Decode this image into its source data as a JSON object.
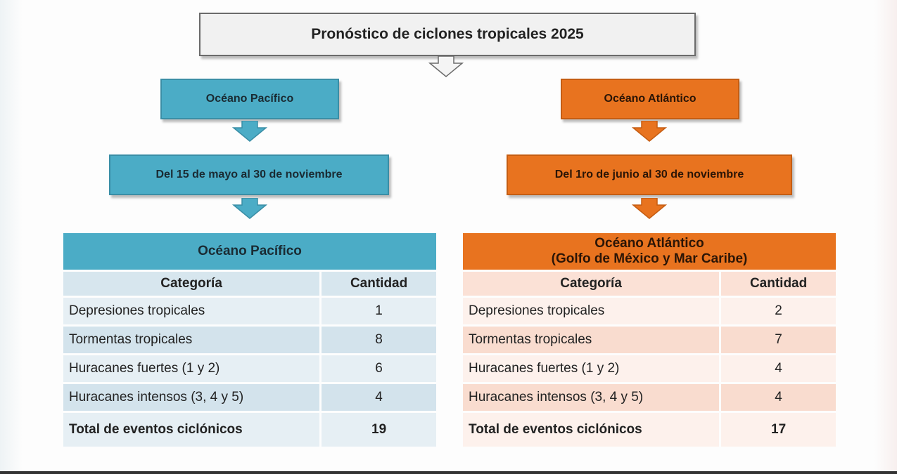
{
  "title": "Pronóstico de ciclones tropicales 2025",
  "pacific": {
    "region": "Océano Pacífico",
    "period": "Del 15 de mayo al 30 de noviembre",
    "table_title": "Océano Pacífico",
    "col_category": "Categoría",
    "col_quantity": "Cantidad",
    "rows": [
      {
        "category": "Depresiones tropicales",
        "quantity": "1"
      },
      {
        "category": "Tormentas tropicales",
        "quantity": "8"
      },
      {
        "category": "Huracanes fuertes (1 y 2)",
        "quantity": "6"
      },
      {
        "category": "Huracanes intensos (3, 4 y 5)",
        "quantity": "4"
      }
    ],
    "total_label": "Total de eventos ciclónicos",
    "total_value": "19"
  },
  "atlantic": {
    "region": "Océano Atlántico",
    "period": "Del 1ro de junio al 30 de noviembre",
    "table_title_line1": "Océano Atlántico",
    "table_title_line2": "(Golfo de México y Mar Caribe)",
    "col_category": "Categoría",
    "col_quantity": "Cantidad",
    "rows": [
      {
        "category": "Depresiones tropicales",
        "quantity": "2"
      },
      {
        "category": "Tormentas tropicales",
        "quantity": "7"
      },
      {
        "category": "Huracanes fuertes (1 y 2)",
        "quantity": "4"
      },
      {
        "category": "Huracanes intensos (3, 4 y 5)",
        "quantity": "4"
      }
    ],
    "total_label": "Total de eventos ciclónicos",
    "total_value": "17"
  },
  "colors": {
    "pacific_accent": "#4bacc6",
    "atlantic_accent": "#e8731f"
  }
}
